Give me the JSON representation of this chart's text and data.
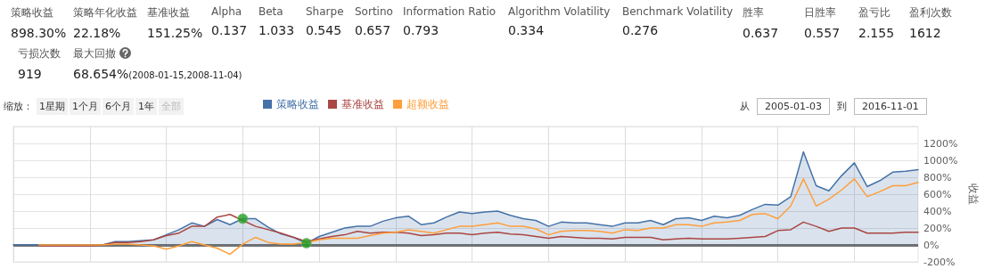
{
  "chart_data": [
    {
      "type": "other",
      "categories": [
        "策略收益",
        "策略年化收益",
        "基准收益",
        "Alpha",
        "Beta",
        "Sharpe",
        "Sortino",
        "Information Ratio",
        "Algorithm Volatility",
        "Benchmark Volatility",
        "胜率",
        "日胜率",
        "盈亏比",
        "盈利次数",
        "亏损次数",
        "最大回撤"
      ],
      "value_labels": [
        "898.30%",
        "22.18%",
        "151.25%",
        "0.137",
        "1.033",
        "0.545",
        "0.657",
        "0.793",
        "0.334",
        "0.276",
        "0.637",
        "0.557",
        "2.155",
        "1612",
        "919",
        "68.654%"
      ],
      "annotations": [
        "(2008-01-15,2008-11-04)"
      ]
    },
    {
      "type": "line",
      "categories": [
        null,
        null,
        null,
        null,
        null,
        null,
        null,
        null,
        null,
        null,
        null,
        null,
        null,
        null,
        null,
        null,
        null,
        null,
        null,
        null,
        null,
        null,
        null,
        null,
        null,
        null,
        null,
        null,
        null,
        null,
        null,
        null,
        null,
        null,
        null,
        null,
        null,
        null,
        null,
        null,
        null,
        null,
        null,
        null,
        null,
        null,
        null,
        null,
        null,
        null,
        null,
        null,
        null,
        null,
        null,
        null,
        null,
        null,
        null,
        null,
        null,
        null,
        null,
        null,
        null,
        null,
        null,
        null,
        null,
        null,
        null,
        null
      ],
      "series": [
        {
          "name": "策略收益",
          "type": "area",
          "color": "#4572a7",
          "values": [
            0,
            0,
            0,
            0,
            0,
            0,
            0,
            0,
            40,
            40,
            50,
            60,
            120,
            180,
            260,
            220,
            300,
            240,
            310,
            310,
            210,
            130,
            90,
            20,
            100,
            150,
            200,
            220,
            220,
            280,
            320,
            340,
            240,
            260,
            330,
            390,
            370,
            390,
            400,
            350,
            310,
            290,
            220,
            270,
            260,
            260,
            240,
            220,
            260,
            260,
            290,
            240,
            310,
            320,
            290,
            340,
            320,
            350,
            420,
            480,
            470,
            570,
            1100,
            700,
            640,
            820,
            970,
            690,
            760,
            860,
            870,
            890
          ]
        },
        {
          "name": "基准收益",
          "color": "#aa4643",
          "values": [
            null,
            null,
            -10,
            -10,
            -10,
            -10,
            -10,
            0,
            30,
            30,
            40,
            60,
            110,
            140,
            220,
            220,
            330,
            360,
            290,
            220,
            180,
            140,
            90,
            40,
            70,
            100,
            120,
            160,
            140,
            150,
            150,
            140,
            110,
            120,
            140,
            140,
            120,
            140,
            150,
            130,
            120,
            100,
            80,
            100,
            90,
            80,
            80,
            70,
            90,
            90,
            90,
            60,
            70,
            80,
            70,
            70,
            70,
            80,
            90,
            100,
            170,
            180,
            270,
            220,
            160,
            200,
            200,
            140,
            140,
            140,
            150,
            150
          ]
        },
        {
          "name": "超额收益",
          "color": "#ff9e3b",
          "values": [
            null,
            null,
            0,
            0,
            0,
            0,
            0,
            0,
            10,
            10,
            0,
            -10,
            -50,
            -10,
            40,
            0,
            -40,
            -110,
            10,
            90,
            30,
            10,
            10,
            30,
            60,
            80,
            80,
            80,
            110,
            140,
            150,
            180,
            160,
            140,
            180,
            220,
            220,
            240,
            260,
            220,
            220,
            190,
            120,
            160,
            170,
            170,
            160,
            140,
            180,
            170,
            200,
            200,
            240,
            240,
            220,
            260,
            270,
            290,
            360,
            370,
            310,
            460,
            780,
            460,
            540,
            650,
            780,
            570,
            630,
            700,
            700,
            740
          ]
        },
        {
          "type": "scatter",
          "color": "#22a022",
          "marker": "circle",
          "values": [
            null,
            null,
            null,
            null,
            null,
            null,
            null,
            null,
            null,
            null,
            null,
            null,
            null,
            null,
            null,
            null,
            null,
            null,
            310,
            null,
            null,
            null,
            null,
            20,
            null,
            null,
            null,
            null,
            null,
            null,
            null,
            null,
            null,
            null,
            null,
            null,
            null,
            null,
            null,
            null,
            null,
            null,
            null,
            null,
            null,
            null,
            null,
            null,
            null,
            null,
            null,
            null,
            null,
            null,
            null,
            null,
            null,
            null,
            null,
            null,
            null,
            null,
            null,
            null,
            null,
            null,
            null,
            null,
            null,
            null,
            null,
            null
          ]
        }
      ],
      "ylabel": "收益",
      "ylim": [
        -200,
        1400
      ],
      "yticks": [
        {
          "value": -200,
          "label": "-200%"
        },
        {
          "value": 0,
          "label": "0%"
        },
        {
          "value": 200,
          "label": "200%"
        },
        {
          "value": 400,
          "label": "400%"
        },
        {
          "value": 600,
          "label": "600%"
        },
        {
          "value": 800,
          "label": "800%"
        },
        {
          "value": 1000,
          "label": "1000%"
        },
        {
          "value": 1200,
          "label": "1200%"
        },
        {
          "value": 1400,
          "label": null
        }
      ],
      "ref_lines": [
        {
          "axis": "y",
          "value": 0,
          "label": null,
          "color": "#707070"
        }
      ],
      "grid": true,
      "legend": "top",
      "tick_labels": "y",
      "annotations": [
        "缩放：",
        "1星期",
        "1个月",
        "6个月",
        "1年",
        "全部",
        "从",
        "2005-01-03",
        "到",
        "2016-11-01"
      ]
    }
  ]
}
